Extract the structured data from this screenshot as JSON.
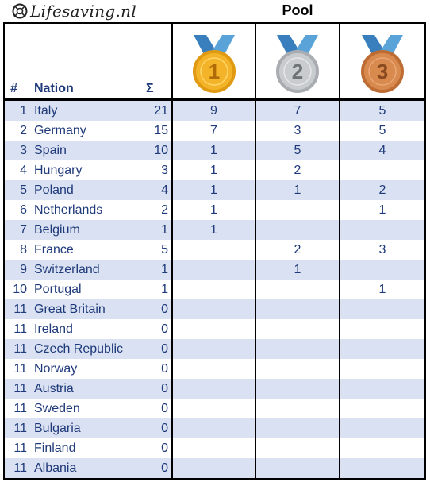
{
  "brand": {
    "name": "Lifesaving.nl"
  },
  "title": "Pool",
  "headers": {
    "rank": "#",
    "nation": "Nation",
    "total": "Σ"
  },
  "medals": {
    "gold": {
      "label": "1",
      "ribbon": "#4a90c8",
      "disc": "#f4b42a",
      "rim": "#e09a12",
      "text": "#b06a08"
    },
    "silver": {
      "label": "2",
      "ribbon": "#4a90c8",
      "disc": "#c9cccf",
      "rim": "#a9adb1",
      "text": "#6f7378"
    },
    "bronze": {
      "label": "3",
      "ribbon": "#4a90c8",
      "disc": "#d98a4e",
      "rim": "#bd6d34",
      "text": "#8a4a1f"
    }
  },
  "colors": {
    "text": "#1f3a7a",
    "shade": "#d9e1f2"
  },
  "rows": [
    {
      "rank": "1",
      "nation": "Italy",
      "total": "21",
      "gold": "9",
      "silver": "7",
      "bronze": "5"
    },
    {
      "rank": "2",
      "nation": "Germany",
      "total": "15",
      "gold": "7",
      "silver": "3",
      "bronze": "5"
    },
    {
      "rank": "3",
      "nation": "Spain",
      "total": "10",
      "gold": "1",
      "silver": "5",
      "bronze": "4"
    },
    {
      "rank": "4",
      "nation": "Hungary",
      "total": "3",
      "gold": "1",
      "silver": "2",
      "bronze": ""
    },
    {
      "rank": "5",
      "nation": "Poland",
      "total": "4",
      "gold": "1",
      "silver": "1",
      "bronze": "2"
    },
    {
      "rank": "6",
      "nation": "Netherlands",
      "total": "2",
      "gold": "1",
      "silver": "",
      "bronze": "1"
    },
    {
      "rank": "7",
      "nation": "Belgium",
      "total": "1",
      "gold": "1",
      "silver": "",
      "bronze": ""
    },
    {
      "rank": "8",
      "nation": "France",
      "total": "5",
      "gold": "",
      "silver": "2",
      "bronze": "3"
    },
    {
      "rank": "9",
      "nation": "Switzerland",
      "total": "1",
      "gold": "",
      "silver": "1",
      "bronze": ""
    },
    {
      "rank": "10",
      "nation": "Portugal",
      "total": "1",
      "gold": "",
      "silver": "",
      "bronze": "1"
    },
    {
      "rank": "11",
      "nation": "Great Britain",
      "total": "0",
      "gold": "",
      "silver": "",
      "bronze": ""
    },
    {
      "rank": "11",
      "nation": "Ireland",
      "total": "0",
      "gold": "",
      "silver": "",
      "bronze": ""
    },
    {
      "rank": "11",
      "nation": "Czech Republic",
      "total": "0",
      "gold": "",
      "silver": "",
      "bronze": ""
    },
    {
      "rank": "11",
      "nation": "Norway",
      "total": "0",
      "gold": "",
      "silver": "",
      "bronze": ""
    },
    {
      "rank": "11",
      "nation": "Austria",
      "total": "0",
      "gold": "",
      "silver": "",
      "bronze": ""
    },
    {
      "rank": "11",
      "nation": "Sweden",
      "total": "0",
      "gold": "",
      "silver": "",
      "bronze": ""
    },
    {
      "rank": "11",
      "nation": "Bulgaria",
      "total": "0",
      "gold": "",
      "silver": "",
      "bronze": ""
    },
    {
      "rank": "11",
      "nation": "Finland",
      "total": "0",
      "gold": "",
      "silver": "",
      "bronze": ""
    },
    {
      "rank": "11",
      "nation": "Albania",
      "total": "0",
      "gold": "",
      "silver": "",
      "bronze": ""
    }
  ]
}
